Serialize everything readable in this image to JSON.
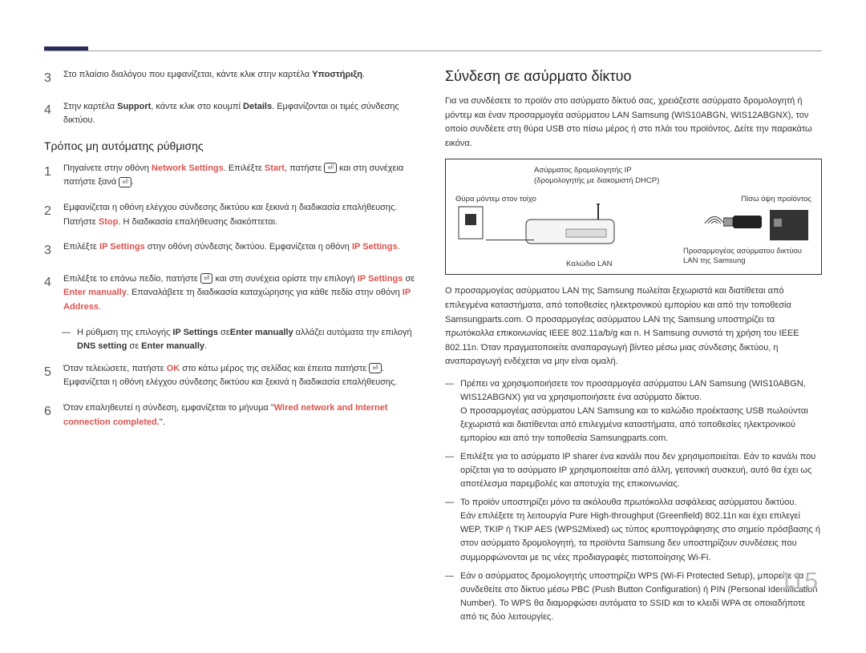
{
  "pageNumber": "115",
  "left": {
    "top_steps": [
      {
        "n": "3",
        "text": "Στο πλαίσιο διαλόγου που εμφανίζεται, κάντε κλικ στην καρτέλα <b>Υποστήριξη</b>."
      },
      {
        "n": "4",
        "text": "Στην καρτέλα <b>Support</b>, κάντε κλικ στο κουμπί <b>Details</b>. Εμφανίζονται οι τιμές σύνδεσης δικτύου."
      }
    ],
    "h2": "Τρόπος μη αυτόματης ρύθμισης",
    "steps": [
      {
        "n": "1",
        "text": "Πηγαίνετε στην οθόνη <span class='red bold'>Network Settings</span>. Επιλέξτε <span class='red bold'>Start</span>, πατήστε <span class='icon-enter'>⏎</span> και στη συνέχεια πατήστε ξανά <span class='icon-enter'>⏎</span>."
      },
      {
        "n": "2",
        "text": "Εμφανίζεται η οθόνη ελέγχου σύνδεσης δικτύου και ξεκινά η διαδικασία επαλήθευσης. Πατήστε <span class='red bold'>Stop</span>. Η διαδικασία επαλήθευσης διακόπτεται."
      },
      {
        "n": "3",
        "text": "Επιλέξτε <span class='red bold'>IP Settings</span> στην οθόνη σύνδεσης δικτύου. Εμφανίζεται η οθόνη <span class='red bold'>IP Settings</span>."
      },
      {
        "n": "4",
        "text": "Επιλέξτε το επάνω πεδίο, πατήστε <span class='icon-enter'>⏎</span> και στη συνέχεια ορίστε την επιλογή <span class='red bold'>IP Settings</span> σε <span class='red bold'>Enter manually</span>. Επαναλάβετε τη διαδικασία καταχώρησης για κάθε πεδίο στην οθόνη <span class='red bold'>IP Address</span>."
      }
    ],
    "note": "Η ρύθμιση της επιλογής <b>IP Settings</b> σε<b>Enter manually</b> αλλάζει αυτόματα την επιλογή <b>DNS setting</b> σε <b>Enter manually</b>.",
    "steps2": [
      {
        "n": "5",
        "text": "Όταν τελειώσετε, πατήστε <span class='red bold'>OK</span> στο κάτω μέρος της σελίδας και έπειτα πατήστε <span class='icon-enter'>⏎</span>. Εμφανίζεται η οθόνη ελέγχου σύνδεσης δικτύου και ξεκινά η διαδικασία επαλήθευσης."
      },
      {
        "n": "6",
        "text": "Όταν επαληθευτεί η σύνδεση, εμφανίζεται το μήνυμα \"<span class='red bold'>Wired network and Internet connection completed.</span>\"."
      }
    ]
  },
  "right": {
    "h1": "Σύνδεση σε ασύρματο δίκτυο",
    "intro": "Για να συνδέσετε το προϊόν στο ασύρματο δίκτυό σας, χρειάζεστε ασύρματο δρομολογητή ή μόντεμ και έναν προσαρμογέα ασύρματου LAN Samsung (WIS10ABGN, WIS12ABGNX), τον οποίο συνδέετε στη θύρα USB στο πίσω μέρος ή στο πλάι του προϊόντος. Δείτε την παρακάτω εικόνα.",
    "diagram": {
      "router": "Ασύρματος δρομολογητής IP\n(δρομολογητής με διακομιστή DHCP)",
      "wall": "Θύρα μόντεμ στον τοίχο",
      "lan": "Καλώδιο LAN",
      "back": "Πίσω όψη προϊόντος",
      "adapter": "Προσαρμογέας ασύρματου δικτύου LAN της Samsung"
    },
    "after": "Ο προσαρμογέας ασύρματου LAN της Samsung πωλείται ξεχωριστά και διατίθεται από επιλεγμένα καταστήματα, από τοποθεσίες ηλεκτρονικού εμπορίου και από την τοποθεσία Samsungparts.com. Ο προσαρμογέας ασύρματου LAN της Samsung υποστηρίζει τα πρωτόκολλα επικοινωνίας IEEE 802.11a/b/g και n. Η Samsung συνιστά τη χρήση του IEEE 802.11n. Όταν πραγματοποιείτε αναπαραγωγή βίντεο μέσω μιας σύνδεσης δικτύου, η αναπαραγωγή ενδέχεται να μην είναι ομαλή.",
    "bullets": [
      "Πρέπει να χρησιμοποιήσετε τον προσαρμογέα ασύρματου LAN Samsung (WIS10ABGN, WIS12ABGNX) για να χρησιμοποιήσετε ένα ασύρματο δίκτυο.<br>Ο προσαρμογέας ασύρματου LAN Samsung και το καλώδιο προέκτασης USB πωλούνται ξεχωριστά και διατίθενται από επιλεγμένα καταστήματα, από τοποθεσίες ηλεκτρονικού εμπορίου και από την τοποθεσία Samsungparts.com.",
      "Επιλέξτε για το ασύρματο IP sharer ένα κανάλι που δεν χρησιμοποιείται. Εάν το κανάλι που ορίζεται για το ασύρματο IP χρησιμοποιείται από άλλη, γειτονική συσκευή, αυτό θα έχει ως αποτέλεσμα παρεμβολές και αποτυχία της επικοινωνίας.",
      "Το προϊόν υποστηρίζει μόνο τα ακόλουθα πρωτόκολλα ασφάλειας ασύρματου δικτύου.<br>Εάν επιλέξετε τη λειτουργία Pure High-throughput (Greenfield) 802.11n και έχει επιλεγεί WEP, TKIP ή TKIP AES (WPS2Mixed) ως τύπος κρυπτογράφησης στο σημείο πρόσβασης ή στον ασύρματο δρομολογητή, τα προϊόντα Samsung δεν υποστηρίζουν συνδέσεις που συμμορφώνονται με τις νέες προδιαγραφές πιστοποίησης Wi-Fi.",
      "Εάν ο ασύρματος δρομολογητής υποστηρίζει WPS (Wi-Fi Protected Setup), μπορείτε να συνδεθείτε στο δίκτυο μέσω PBC (Push Button Configuration) ή PIN (Personal Identification Number). Το WPS θα διαμορφώσει αυτόματα το SSID και το κλειδί WPA σε οποιαδήποτε από τις δύο λειτουργίες."
    ]
  }
}
